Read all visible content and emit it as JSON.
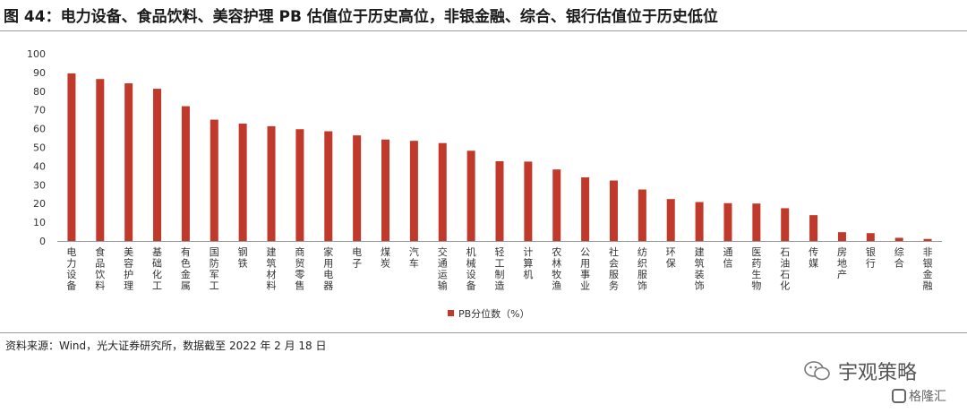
{
  "figure": {
    "title": "图 44：电力设备、食品饮料、美容护理 PB 估值位于历史高位，非银金融、综合、银行估值位于历史低位",
    "source": "资料来源：Wind，光大证券研究所，数据截至 2022 年 2 月 18 日"
  },
  "watermark": {
    "brand": "宇观策略",
    "corner": "格隆汇"
  },
  "chart_data": {
    "type": "bar",
    "categories": [
      "电力设备",
      "食品饮料",
      "美容护理",
      "基础化工",
      "有色金属",
      "国防军工",
      "钢铁",
      "建筑材料",
      "商贸零售",
      "家用电器",
      "电子",
      "煤炭",
      "汽车",
      "交通运输",
      "机械设备",
      "轻工制造",
      "计算机",
      "农林牧渔",
      "公用事业",
      "社会服务",
      "纺织服饰",
      "环保",
      "建筑装饰",
      "通信",
      "医药生物",
      "石油石化",
      "传媒",
      "房地产",
      "银行",
      "综合",
      "非银金融"
    ],
    "series": [
      {
        "name": "PB分位数（%）",
        "color": "#c0392b",
        "values": [
          89.5,
          86.5,
          84.2,
          81.3,
          72.0,
          64.8,
          62.7,
          61.3,
          59.7,
          58.6,
          56.4,
          54.2,
          53.5,
          52.3,
          48.2,
          42.6,
          42.4,
          38.2,
          34.0,
          32.3,
          27.5,
          22.4,
          20.8,
          20.2,
          20.0,
          17.5,
          13.8,
          4.7,
          4.2,
          1.7,
          1.1
        ]
      }
    ],
    "ylim": [
      0,
      100
    ],
    "yticks": [
      0,
      10,
      20,
      30,
      40,
      50,
      60,
      70,
      80,
      90,
      100
    ],
    "grid": false,
    "legend": "bottom-center"
  }
}
